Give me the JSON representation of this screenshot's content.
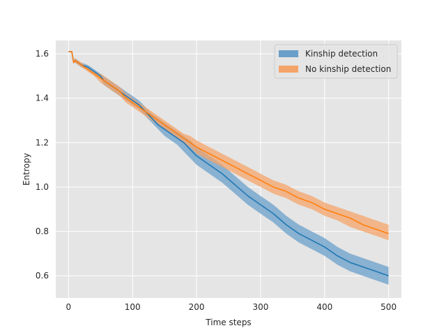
{
  "chart_data": {
    "type": "line",
    "title": "",
    "xlabel": "Time steps",
    "ylabel": "Entropy",
    "xlim": [
      -20,
      520
    ],
    "ylim": [
      0.5,
      1.66
    ],
    "xticks": [
      0,
      100,
      200,
      300,
      400,
      500
    ],
    "yticks": [
      0.6,
      0.8,
      1.0,
      1.2,
      1.4,
      1.6
    ],
    "xtick_labels": [
      "0",
      "100",
      "200",
      "300",
      "400",
      "500"
    ],
    "ytick_labels": [
      "0.6",
      "0.8",
      "1.0",
      "1.2",
      "1.4",
      "1.6"
    ],
    "grid": true,
    "background": "#e5e5e5",
    "legend_position": "top-right",
    "series": [
      {
        "name": "Kinship detection",
        "color": "#1f77b4",
        "band_color": "#6a9fc9",
        "x": [
          0,
          5,
          8,
          10,
          15,
          20,
          30,
          40,
          50,
          55,
          60,
          70,
          80,
          90,
          100,
          110,
          120,
          130,
          140,
          150,
          160,
          170,
          180,
          190,
          200,
          220,
          240,
          260,
          280,
          300,
          320,
          340,
          360,
          380,
          400,
          420,
          440,
          460,
          480,
          500
        ],
        "y": [
          1.61,
          1.61,
          1.56,
          1.57,
          1.56,
          1.55,
          1.54,
          1.52,
          1.5,
          1.48,
          1.47,
          1.45,
          1.43,
          1.41,
          1.39,
          1.37,
          1.34,
          1.31,
          1.28,
          1.26,
          1.24,
          1.22,
          1.2,
          1.17,
          1.14,
          1.1,
          1.06,
          1.01,
          0.96,
          0.92,
          0.88,
          0.83,
          0.79,
          0.76,
          0.73,
          0.69,
          0.66,
          0.64,
          0.62,
          0.6
        ],
        "lower": [
          1.61,
          1.61,
          1.56,
          1.56,
          1.55,
          1.54,
          1.53,
          1.51,
          1.49,
          1.46,
          1.45,
          1.43,
          1.41,
          1.39,
          1.37,
          1.35,
          1.32,
          1.29,
          1.26,
          1.23,
          1.21,
          1.19,
          1.16,
          1.13,
          1.1,
          1.06,
          1.02,
          0.97,
          0.92,
          0.88,
          0.84,
          0.79,
          0.75,
          0.72,
          0.69,
          0.65,
          0.62,
          0.6,
          0.58,
          0.56
        ],
        "upper": [
          1.61,
          1.61,
          1.57,
          1.58,
          1.57,
          1.56,
          1.55,
          1.53,
          1.51,
          1.5,
          1.49,
          1.47,
          1.45,
          1.43,
          1.41,
          1.39,
          1.36,
          1.33,
          1.31,
          1.29,
          1.27,
          1.25,
          1.23,
          1.21,
          1.18,
          1.14,
          1.1,
          1.05,
          1.0,
          0.96,
          0.92,
          0.87,
          0.83,
          0.8,
          0.77,
          0.73,
          0.7,
          0.68,
          0.66,
          0.64
        ]
      },
      {
        "name": "No kinship detection",
        "color": "#ff7f0e",
        "band_color": "#f4a46a",
        "x": [
          0,
          5,
          8,
          10,
          15,
          20,
          30,
          40,
          50,
          55,
          60,
          70,
          80,
          90,
          100,
          110,
          120,
          130,
          140,
          150,
          160,
          170,
          180,
          190,
          200,
          220,
          240,
          260,
          280,
          300,
          320,
          340,
          360,
          380,
          400,
          420,
          440,
          460,
          480,
          500
        ],
        "y": [
          1.61,
          1.61,
          1.56,
          1.57,
          1.56,
          1.55,
          1.53,
          1.51,
          1.49,
          1.48,
          1.47,
          1.45,
          1.43,
          1.4,
          1.38,
          1.36,
          1.34,
          1.32,
          1.3,
          1.28,
          1.26,
          1.24,
          1.22,
          1.2,
          1.18,
          1.15,
          1.12,
          1.09,
          1.06,
          1.03,
          1.0,
          0.98,
          0.95,
          0.93,
          0.9,
          0.88,
          0.86,
          0.83,
          0.81,
          0.79
        ],
        "lower": [
          1.61,
          1.61,
          1.56,
          1.56,
          1.55,
          1.54,
          1.52,
          1.5,
          1.47,
          1.46,
          1.45,
          1.43,
          1.41,
          1.38,
          1.36,
          1.34,
          1.32,
          1.3,
          1.28,
          1.26,
          1.24,
          1.22,
          1.2,
          1.18,
          1.15,
          1.12,
          1.09,
          1.06,
          1.03,
          1.0,
          0.97,
          0.95,
          0.92,
          0.9,
          0.87,
          0.85,
          0.82,
          0.8,
          0.78,
          0.76
        ],
        "upper": [
          1.61,
          1.61,
          1.57,
          1.58,
          1.57,
          1.56,
          1.54,
          1.52,
          1.51,
          1.5,
          1.49,
          1.47,
          1.45,
          1.42,
          1.4,
          1.38,
          1.36,
          1.34,
          1.32,
          1.3,
          1.28,
          1.26,
          1.24,
          1.23,
          1.21,
          1.18,
          1.15,
          1.12,
          1.09,
          1.06,
          1.03,
          1.01,
          0.98,
          0.96,
          0.93,
          0.91,
          0.89,
          0.87,
          0.85,
          0.83
        ]
      }
    ]
  }
}
